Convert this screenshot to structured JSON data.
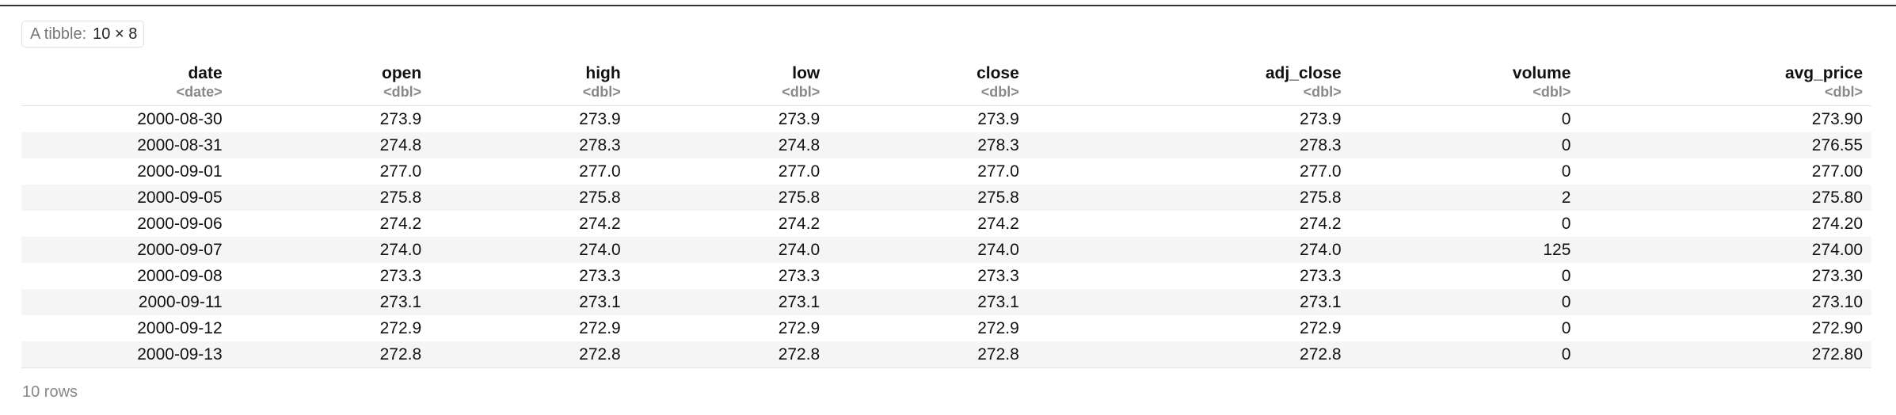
{
  "badge": {
    "label": "A tibble:",
    "dims": "10 × 8"
  },
  "columns": [
    {
      "name": "date",
      "type": "<date>"
    },
    {
      "name": "open",
      "type": "<dbl>"
    },
    {
      "name": "high",
      "type": "<dbl>"
    },
    {
      "name": "low",
      "type": "<dbl>"
    },
    {
      "name": "close",
      "type": "<dbl>"
    },
    {
      "name": "adj_close",
      "type": "<dbl>"
    },
    {
      "name": "volume",
      "type": "<dbl>"
    },
    {
      "name": "avg_price",
      "type": "<dbl>"
    }
  ],
  "rows": [
    [
      "2000-08-30",
      "273.9",
      "273.9",
      "273.9",
      "273.9",
      "273.9",
      "0",
      "273.90"
    ],
    [
      "2000-08-31",
      "274.8",
      "278.3",
      "274.8",
      "278.3",
      "278.3",
      "0",
      "276.55"
    ],
    [
      "2000-09-01",
      "277.0",
      "277.0",
      "277.0",
      "277.0",
      "277.0",
      "0",
      "277.00"
    ],
    [
      "2000-09-05",
      "275.8",
      "275.8",
      "275.8",
      "275.8",
      "275.8",
      "2",
      "275.80"
    ],
    [
      "2000-09-06",
      "274.2",
      "274.2",
      "274.2",
      "274.2",
      "274.2",
      "0",
      "274.20"
    ],
    [
      "2000-09-07",
      "274.0",
      "274.0",
      "274.0",
      "274.0",
      "274.0",
      "125",
      "274.00"
    ],
    [
      "2000-09-08",
      "273.3",
      "273.3",
      "273.3",
      "273.3",
      "273.3",
      "0",
      "273.30"
    ],
    [
      "2000-09-11",
      "273.1",
      "273.1",
      "273.1",
      "273.1",
      "273.1",
      "0",
      "273.10"
    ],
    [
      "2000-09-12",
      "272.9",
      "272.9",
      "272.9",
      "272.9",
      "272.9",
      "0",
      "272.90"
    ],
    [
      "2000-09-13",
      "272.8",
      "272.8",
      "272.8",
      "272.8",
      "272.8",
      "0",
      "272.80"
    ]
  ],
  "footer": {
    "row_count": "10 rows"
  }
}
